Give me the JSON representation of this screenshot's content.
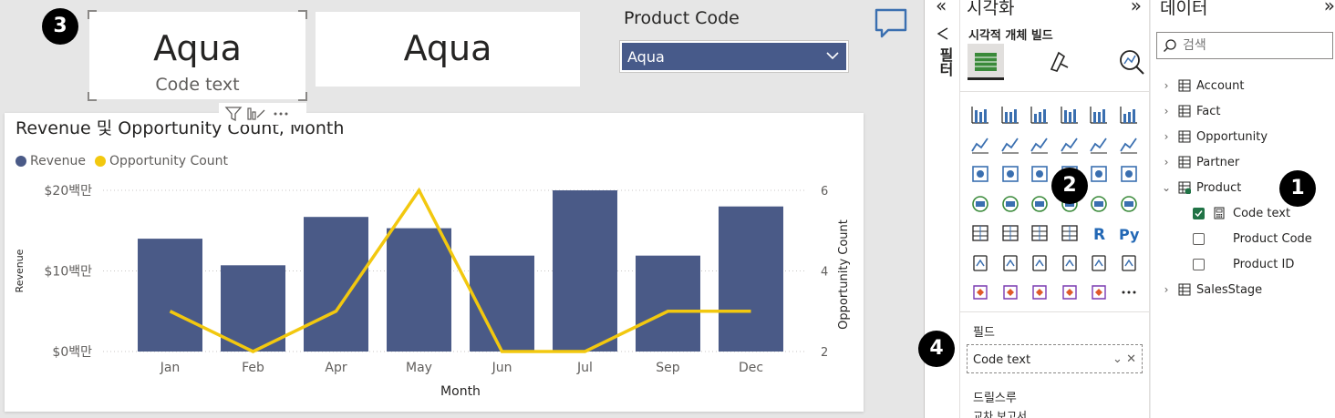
{
  "canvas": {
    "card_selected": {
      "value": "Aqua",
      "label": "Code text"
    },
    "card_plain": {
      "value": "Aqua"
    },
    "slicer": {
      "title": "Product Code",
      "selected": "Aqua"
    }
  },
  "chart_data": {
    "type": "bar",
    "title": "Revenue 및 Opportunity Count, Month",
    "categories": [
      "Jan",
      "Feb",
      "Apr",
      "May",
      "Jun",
      "Jul",
      "Sep",
      "Dec"
    ],
    "series": [
      {
        "name": "Revenue",
        "type": "bar",
        "axis": "left",
        "color": "#4a5a87",
        "values": [
          14,
          10.7,
          16.7,
          15.3,
          11.9,
          20,
          11.9,
          18
        ]
      },
      {
        "name": "Opportunity Count",
        "type": "line",
        "axis": "right",
        "color": "#f2c80f",
        "values": [
          3,
          2,
          3,
          6,
          2,
          2,
          3,
          3
        ]
      }
    ],
    "xlabel": "Month",
    "ylabel": "Revenue",
    "y2label": "Opportunity Count",
    "ylim": [
      0,
      20
    ],
    "y2lim": [
      2,
      6
    ],
    "yticks": [
      "$0백만",
      "$10백만",
      "$20백만"
    ],
    "y2ticks": [
      "2",
      "4",
      "6"
    ],
    "legend": "top-left",
    "grid": true
  },
  "badges": [
    "1",
    "2",
    "3",
    "4"
  ],
  "filter_strip": {
    "label": "필터"
  },
  "viz_pane": {
    "title": "시각화",
    "subtitle": "시각적 개체 빌드",
    "fields_label": "필드",
    "field_well_value": "Code text",
    "drillthrough_label": "드릴스루",
    "cutoff_text": "교차 보고서",
    "more_glyph": "···"
  },
  "data_pane": {
    "title": "데이터",
    "search_placeholder": "검색",
    "tables": [
      {
        "name": "Account"
      },
      {
        "name": "Fact"
      },
      {
        "name": "Opportunity"
      },
      {
        "name": "Partner"
      },
      {
        "name": "Product"
      },
      {
        "name": "SalesStage"
      }
    ],
    "product_fields": [
      {
        "name": "Code text",
        "checked": true
      },
      {
        "name": "Product Code",
        "checked": false
      },
      {
        "name": "Product ID",
        "checked": false
      }
    ]
  },
  "colors": {
    "bar": "#4a5a87",
    "line": "#f2c80f",
    "slicer": "#475a8a",
    "accent": "#217346"
  }
}
